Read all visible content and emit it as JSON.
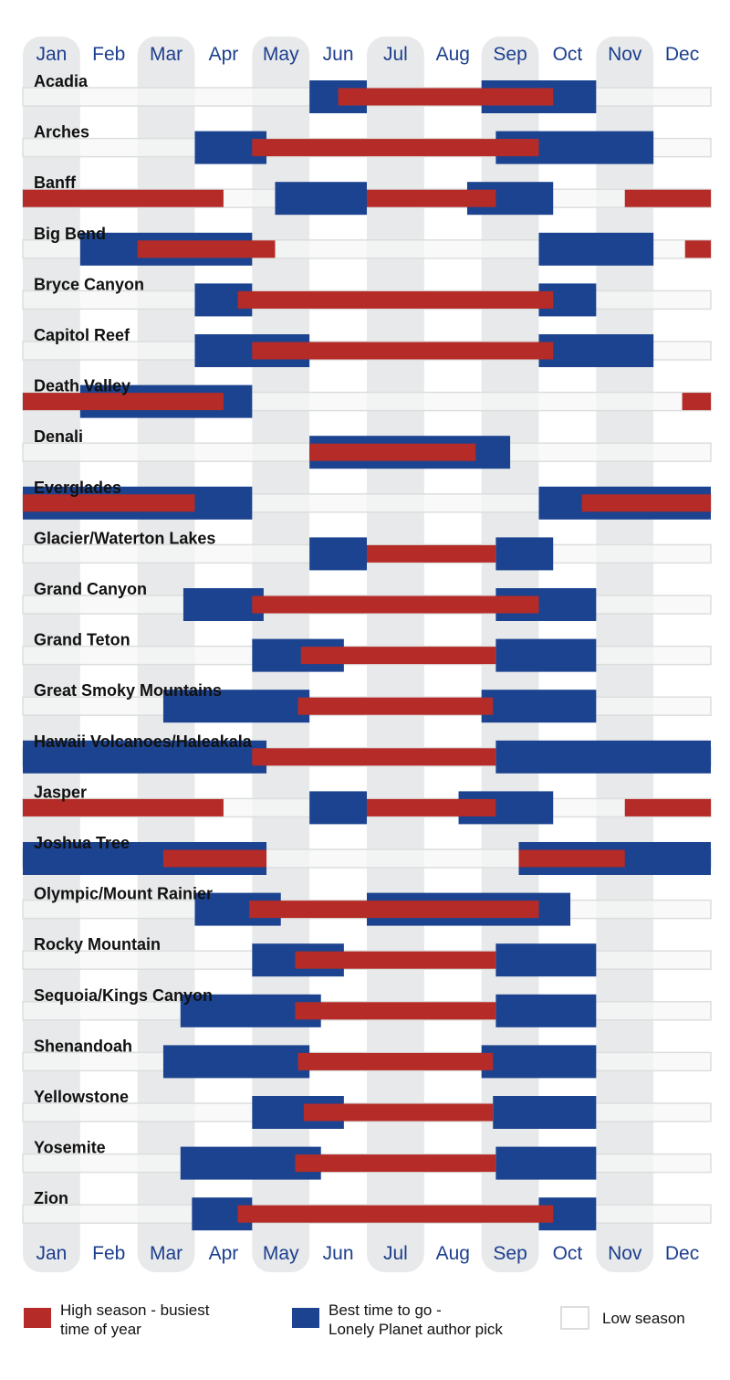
{
  "chart_data": {
    "type": "gantt",
    "title": "",
    "months": [
      "Jan",
      "Feb",
      "Mar",
      "Apr",
      "May",
      "Jun",
      "Jul",
      "Aug",
      "Sep",
      "Oct",
      "Nov",
      "Dec"
    ],
    "units": "month index (0 = start of Jan, 12 = end of Dec)",
    "colors": {
      "high": "#b52b27",
      "best": "#1c4390",
      "low": "#f6f7f7",
      "low_border": "#dcdede",
      "stripe": "#e8e9ea",
      "month_text": "#1c3f8e"
    },
    "parks": [
      {
        "name": "Acadia",
        "best": [
          [
            5.0,
            6.0
          ],
          [
            8.0,
            10.0
          ]
        ],
        "high": [
          [
            5.5,
            9.25
          ]
        ]
      },
      {
        "name": "Arches",
        "best": [
          [
            3.0,
            4.25
          ],
          [
            8.25,
            11.0
          ]
        ],
        "high": [
          [
            4.0,
            9.0
          ]
        ]
      },
      {
        "name": "Banff",
        "best": [
          [
            4.4,
            6.0
          ],
          [
            7.75,
            9.25
          ]
        ],
        "high": [
          [
            0.0,
            3.5
          ],
          [
            6.0,
            8.25
          ],
          [
            10.5,
            12.0
          ]
        ]
      },
      {
        "name": "Big Bend",
        "best": [
          [
            1.0,
            4.0
          ],
          [
            9.0,
            11.0
          ]
        ],
        "high": [
          [
            2.0,
            4.4
          ],
          [
            11.55,
            12.0
          ]
        ]
      },
      {
        "name": "Bryce Canyon",
        "best": [
          [
            3.0,
            4.0
          ],
          [
            9.0,
            10.0
          ]
        ],
        "high": [
          [
            3.75,
            9.25
          ]
        ]
      },
      {
        "name": "Capitol Reef",
        "best": [
          [
            3.0,
            5.0
          ],
          [
            9.0,
            11.0
          ]
        ],
        "high": [
          [
            4.0,
            9.25
          ]
        ]
      },
      {
        "name": "Death Valley",
        "best": [
          [
            1.0,
            4.0
          ]
        ],
        "high": [
          [
            0.0,
            3.5
          ],
          [
            11.5,
            12.0
          ]
        ]
      },
      {
        "name": "Denali",
        "best": [
          [
            5.0,
            8.5
          ]
        ],
        "high": [
          [
            5.0,
            7.9
          ]
        ]
      },
      {
        "name": "Everglades",
        "best": [
          [
            0.0,
            4.0
          ],
          [
            9.0,
            12.0
          ]
        ],
        "high": [
          [
            0.0,
            3.0
          ],
          [
            9.75,
            12.0
          ]
        ]
      },
      {
        "name": "Glacier/Waterton Lakes",
        "best": [
          [
            5.0,
            6.0
          ],
          [
            8.25,
            9.25
          ]
        ],
        "high": [
          [
            6.0,
            8.25
          ]
        ]
      },
      {
        "name": "Grand Canyon",
        "best": [
          [
            2.8,
            4.2
          ],
          [
            8.25,
            10.0
          ]
        ],
        "high": [
          [
            4.0,
            9.0
          ]
        ]
      },
      {
        "name": "Grand Teton",
        "best": [
          [
            4.0,
            5.6
          ],
          [
            8.25,
            10.0
          ]
        ],
        "high": [
          [
            4.85,
            8.25
          ]
        ]
      },
      {
        "name": "Great Smoky Mountains",
        "best": [
          [
            2.45,
            5.0
          ],
          [
            8.0,
            10.0
          ]
        ],
        "high": [
          [
            4.8,
            8.2
          ]
        ]
      },
      {
        "name": "Hawaii Volcanoes/Haleakala",
        "best": [
          [
            0.0,
            4.25
          ],
          [
            8.25,
            12.0
          ]
        ],
        "high": [
          [
            4.0,
            8.25
          ]
        ]
      },
      {
        "name": "Jasper",
        "best": [
          [
            5.0,
            6.0
          ],
          [
            7.6,
            9.25
          ]
        ],
        "high": [
          [
            0.0,
            3.5
          ],
          [
            6.0,
            8.25
          ],
          [
            10.5,
            12.0
          ]
        ]
      },
      {
        "name": "Joshua Tree",
        "best": [
          [
            0.0,
            4.25
          ],
          [
            8.65,
            12.0
          ]
        ],
        "high": [
          [
            2.45,
            4.25
          ],
          [
            8.65,
            10.5
          ]
        ]
      },
      {
        "name": "Olympic/Mount Rainier",
        "best": [
          [
            3.0,
            4.5
          ],
          [
            6.0,
            9.55
          ]
        ],
        "high": [
          [
            3.95,
            9.0
          ]
        ]
      },
      {
        "name": "Rocky Mountain",
        "best": [
          [
            4.0,
            5.6
          ],
          [
            8.25,
            10.0
          ]
        ],
        "high": [
          [
            4.75,
            8.25
          ]
        ]
      },
      {
        "name": "Sequoia/Kings Canyon",
        "best": [
          [
            2.75,
            5.2
          ],
          [
            8.25,
            10.0
          ]
        ],
        "high": [
          [
            4.75,
            8.25
          ]
        ]
      },
      {
        "name": "Shenandoah",
        "best": [
          [
            2.45,
            5.0
          ],
          [
            8.0,
            10.0
          ]
        ],
        "high": [
          [
            4.8,
            8.2
          ]
        ]
      },
      {
        "name": "Yellowstone",
        "best": [
          [
            4.0,
            5.6
          ],
          [
            8.2,
            10.0
          ]
        ],
        "high": [
          [
            4.9,
            8.2
          ]
        ]
      },
      {
        "name": "Yosemite",
        "best": [
          [
            2.75,
            5.2
          ],
          [
            8.25,
            10.0
          ]
        ],
        "high": [
          [
            4.75,
            8.25
          ]
        ]
      },
      {
        "name": "Zion",
        "best": [
          [
            2.95,
            4.0
          ],
          [
            9.0,
            10.0
          ]
        ],
        "high": [
          [
            3.75,
            9.25
          ]
        ]
      }
    ],
    "legend": [
      {
        "key": "high",
        "label": "High season - busiest\ntime of year"
      },
      {
        "key": "best",
        "label": "Best time to go -\nLonely Planet author pick"
      },
      {
        "key": "low",
        "label": "Low season"
      }
    ]
  }
}
